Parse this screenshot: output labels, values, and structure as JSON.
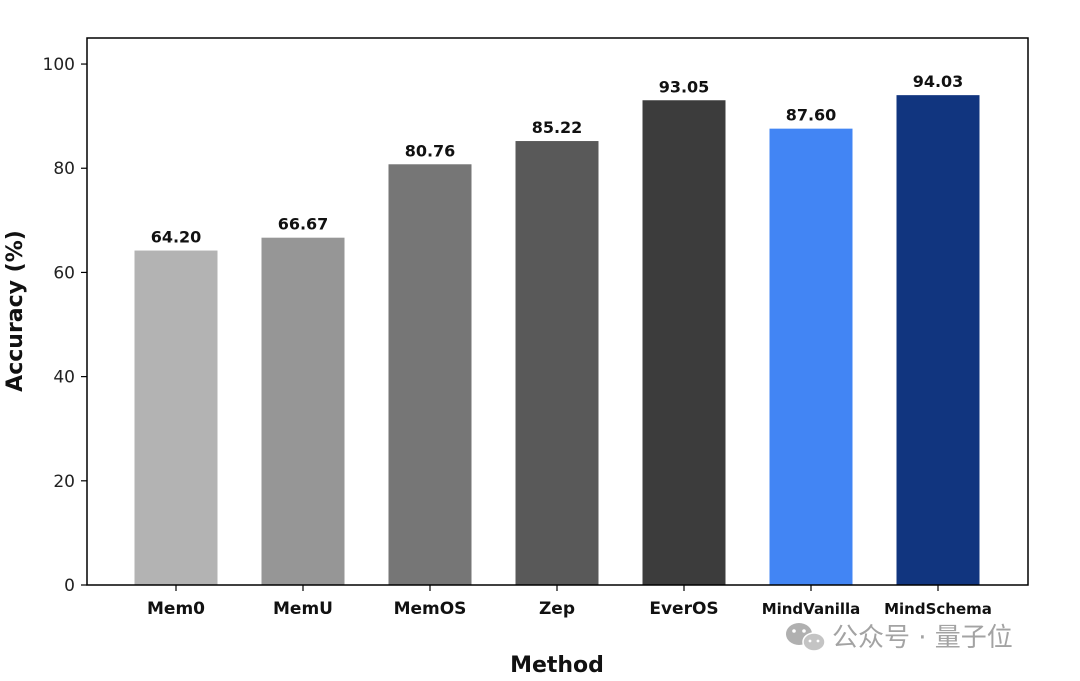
{
  "chart_data": {
    "type": "bar",
    "categories": [
      "Mem0",
      "MemU",
      "MemOS",
      "Zep",
      "EverOS",
      "MindVanilla",
      "MindSchema"
    ],
    "values": [
      64.2,
      66.67,
      80.76,
      85.22,
      93.05,
      87.6,
      94.03
    ],
    "value_labels": [
      "64.20",
      "66.67",
      "80.76",
      "85.22",
      "93.05",
      "87.60",
      "94.03"
    ],
    "colors": [
      "#b3b3b3",
      "#969696",
      "#767676",
      "#595959",
      "#3c3c3c",
      "#4285f4",
      "#11357f"
    ],
    "xlabel": "Method",
    "ylabel": "Accuracy (%)",
    "ylim": [
      0,
      105
    ],
    "yticks": [
      0,
      20,
      40,
      60,
      80,
      100
    ],
    "ytick_labels": [
      "0",
      "20",
      "40",
      "60",
      "80",
      "100"
    ],
    "grid": false,
    "legend": false
  },
  "watermark": {
    "text": "公众号 · 量子位",
    "icon": "wechat-icon"
  }
}
